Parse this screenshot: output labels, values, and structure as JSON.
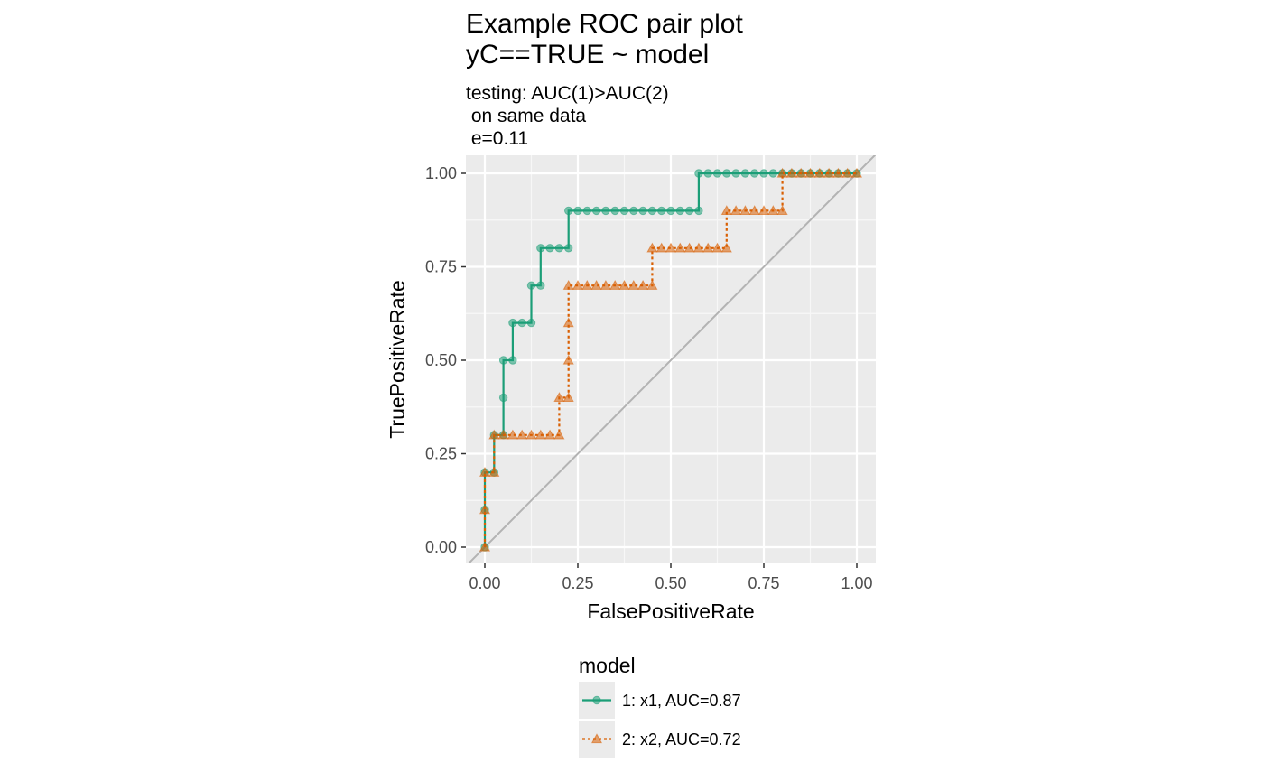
{
  "chart_data": {
    "type": "line",
    "title": [
      "Example ROC pair plot",
      "yC==TRUE ~ model"
    ],
    "subtitle": [
      "testing: AUC(1)>AUC(2)",
      " on same data",
      " e=0.11"
    ],
    "xlabel": "FalsePositiveRate",
    "ylabel": "TruePositiveRate",
    "xlim": [
      0,
      1
    ],
    "ylim": [
      0,
      1
    ],
    "xticks": [
      0,
      0.25,
      0.5,
      0.75,
      1
    ],
    "xtick_labels": [
      "0.00",
      "0.25",
      "0.50",
      "0.75",
      "1.00"
    ],
    "yticks": [
      0,
      0.25,
      0.5,
      0.75,
      1
    ],
    "ytick_labels": [
      "0.00",
      "0.25",
      "0.50",
      "0.75",
      "1.00"
    ],
    "grid": true,
    "reference_line": [
      [
        0,
        0
      ],
      [
        1,
        1
      ]
    ],
    "legend": {
      "title": "model",
      "position": "bottom"
    },
    "series": [
      {
        "name": "1: x1, AUC=0.87",
        "color": "#1b9e77",
        "line_style": "solid",
        "marker": "circle",
        "x": [
          0,
          0,
          0,
          0.025,
          0.025,
          0.05,
          0.05,
          0.05,
          0.075,
          0.075,
          0.1,
          0.125,
          0.125,
          0.15,
          0.15,
          0.175,
          0.2,
          0.225,
          0.225,
          0.25,
          0.275,
          0.3,
          0.325,
          0.35,
          0.375,
          0.4,
          0.425,
          0.45,
          0.475,
          0.5,
          0.525,
          0.55,
          0.575,
          0.575,
          0.6,
          0.625,
          0.65,
          0.675,
          0.7,
          0.725,
          0.75,
          0.775,
          0.8,
          0.825,
          0.85,
          0.875,
          0.9,
          0.925,
          0.95,
          0.975,
          1
        ],
        "y": [
          0,
          0.1,
          0.2,
          0.2,
          0.3,
          0.3,
          0.4,
          0.5,
          0.5,
          0.6,
          0.6,
          0.6,
          0.7,
          0.7,
          0.8,
          0.8,
          0.8,
          0.8,
          0.9,
          0.9,
          0.9,
          0.9,
          0.9,
          0.9,
          0.9,
          0.9,
          0.9,
          0.9,
          0.9,
          0.9,
          0.9,
          0.9,
          0.9,
          1,
          1,
          1,
          1,
          1,
          1,
          1,
          1,
          1,
          1,
          1,
          1,
          1,
          1,
          1,
          1,
          1,
          1
        ]
      },
      {
        "name": "2: x2, AUC=0.72",
        "color": "#d95f02",
        "line_style": "dotted",
        "marker": "triangle",
        "x": [
          0,
          0,
          0,
          0.025,
          0.025,
          0.05,
          0.075,
          0.1,
          0.125,
          0.15,
          0.175,
          0.2,
          0.2,
          0.225,
          0.225,
          0.225,
          0.225,
          0.25,
          0.275,
          0.3,
          0.325,
          0.35,
          0.375,
          0.4,
          0.425,
          0.45,
          0.45,
          0.475,
          0.5,
          0.525,
          0.55,
          0.575,
          0.6,
          0.625,
          0.65,
          0.65,
          0.675,
          0.7,
          0.725,
          0.75,
          0.775,
          0.8,
          0.8,
          0.825,
          0.85,
          0.875,
          0.9,
          0.925,
          0.95,
          0.975,
          1
        ],
        "y": [
          0,
          0.1,
          0.2,
          0.2,
          0.3,
          0.3,
          0.3,
          0.3,
          0.3,
          0.3,
          0.3,
          0.3,
          0.4,
          0.4,
          0.5,
          0.6,
          0.7,
          0.7,
          0.7,
          0.7,
          0.7,
          0.7,
          0.7,
          0.7,
          0.7,
          0.7,
          0.8,
          0.8,
          0.8,
          0.8,
          0.8,
          0.8,
          0.8,
          0.8,
          0.8,
          0.9,
          0.9,
          0.9,
          0.9,
          0.9,
          0.9,
          0.9,
          1,
          1,
          1,
          1,
          1,
          1,
          1,
          1,
          1
        ]
      }
    ]
  }
}
